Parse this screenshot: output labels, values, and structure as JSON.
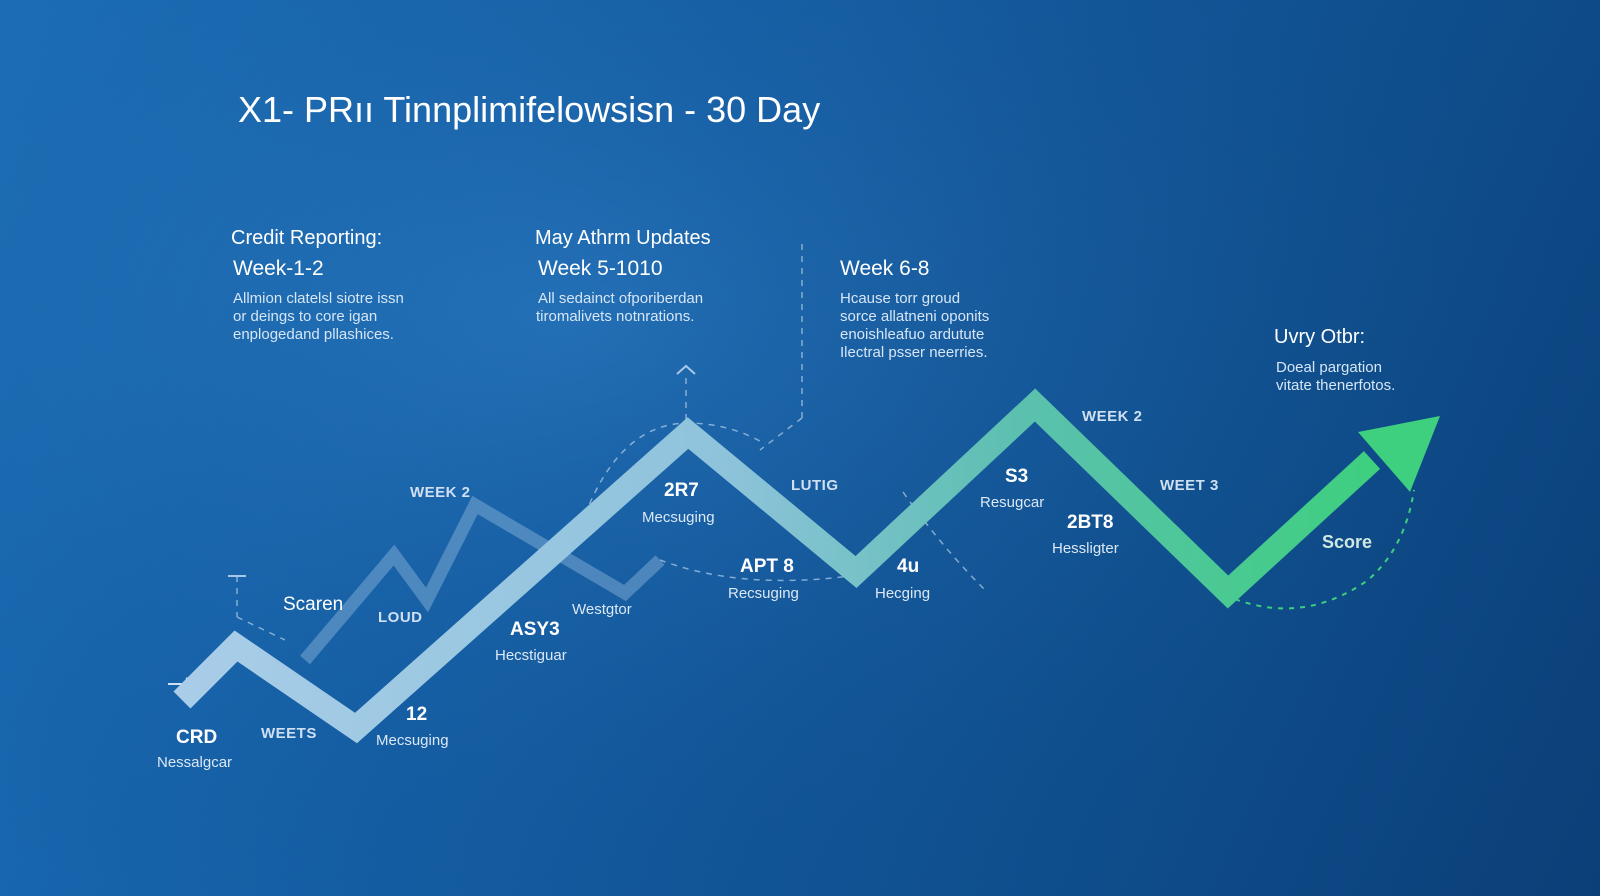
{
  "title": "X1- PRıı Tinnplimifelowsisn - 30 Day",
  "columns": [
    {
      "heading": "Credit Reporting:",
      "period": "Week-1-2",
      "lines": [
        "Allmion clatelsl siotre issn",
        "or deings to core igan",
        "enplogedand pllashices."
      ]
    },
    {
      "heading": "May Athrm Updates",
      "period": "Week 5-1010",
      "lines": [
        "All sedainct ofporiberdan",
        "tiromalivets notnrations."
      ]
    },
    {
      "heading": "",
      "period": "Week 6-8",
      "lines": [
        "Hcause torr groud",
        "sorce allatneni oponits",
        "enoishleafuo ardutute",
        "Ilectral psser neerries."
      ]
    },
    {
      "heading": "Uvry Otbr:",
      "period": "",
      "lines": [
        "Doeal pargation",
        "vitate thenerfotos."
      ]
    }
  ],
  "week_labels": [
    "WEEK 2",
    "LUTIG",
    "WEEK 2",
    "WEET 3",
    "LOUD",
    "WEETS"
  ],
  "points": [
    {
      "value": "CRD",
      "label": "Nessalgcar"
    },
    {
      "value": "12",
      "label": "Mecsuging"
    },
    {
      "value": "ASY3",
      "label": "Hecstiguar"
    },
    {
      "value": "2R7",
      "label": "Mecsuging"
    },
    {
      "value": "APT 8",
      "label": "Recsuging"
    },
    {
      "value": "4u",
      "label": "Hecging"
    },
    {
      "value": "S3",
      "label": "Resugcar"
    },
    {
      "value": "2BT8",
      "label": "Hessligter"
    }
  ],
  "side_labels": {
    "scaren": "Scaren",
    "westgtor": "Westgtor",
    "score": "Score"
  },
  "colors": {
    "bg_start": "#1b6fb8",
    "bg_end": "#0b3f78",
    "path_start": "#a9cde8",
    "path_end": "#3ecf7f",
    "accent_green": "#3ecf7f"
  }
}
